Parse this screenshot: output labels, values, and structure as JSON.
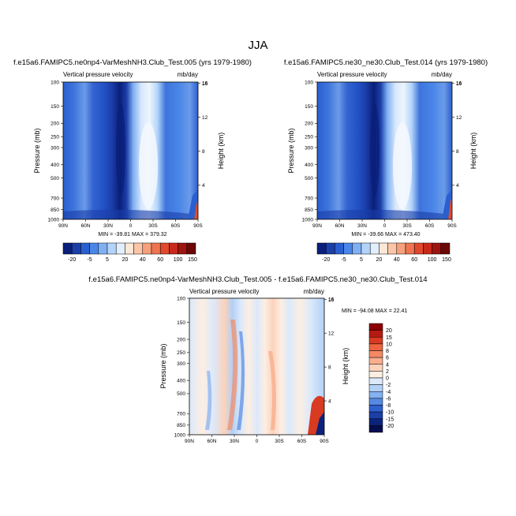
{
  "figure": {
    "title": "JJA"
  },
  "panels": [
    {
      "title": "f.e15a6.FAMIPC5.ne0np4-VarMeshNH3.Club_Test.005 (yrs 1979-1980)",
      "variable_label": "Vertical pressure velocity",
      "units_label": "mb/day",
      "y_label": "Pressure (mb)",
      "y2_label": "Height (km)",
      "stats": "MIN = -39.81  MAX = 379.32"
    },
    {
      "title": "f.e15a6.FAMIPC5.ne30_ne30.Club_Test.014 (yrs 1979-1980)",
      "variable_label": "Vertical pressure velocity",
      "units_label": "mb/day",
      "y_label": "Pressure (mb)",
      "y2_label": "Height (km)",
      "stats": "MIN = -39.66  MAX = 473.40"
    },
    {
      "title": "f.e15a6.FAMIPC5.ne0np4-VarMeshNH3.Club_Test.005 - f.e15a6.FAMIPC5.ne30_ne30.Club_Test.014",
      "variable_label": "Vertical pressure velocity",
      "units_label": "mb/day",
      "y_label": "Pressure (mb)",
      "y2_label": "Height (km)",
      "stats": "MIN = -94.08  MAX =  22.41"
    }
  ],
  "chart_data": [
    {
      "type": "heatmap",
      "title": "f.e15a6.FAMIPC5.ne0np4-VarMeshNH3.Club_Test.005 (yrs 1979-1980)",
      "x_ticks": [
        "90N",
        "60N",
        "30N",
        "0",
        "30S",
        "60S",
        "90S"
      ],
      "y_ticks": [
        "100",
        "150",
        "200",
        "250",
        "300",
        "400",
        "500",
        "700",
        "850",
        "1000"
      ],
      "y_ticks_values": [
        100,
        150,
        200,
        250,
        300,
        400,
        500,
        700,
        850,
        1000
      ],
      "y2_ticks": [
        "16",
        "12",
        "8",
        "4"
      ],
      "y2_ticks_values": [
        16,
        12,
        8,
        4
      ],
      "ylim": [
        1000,
        100
      ],
      "xlim": [
        90,
        -90
      ],
      "colorbar_labels": [
        "-20",
        "-5",
        "5",
        "20",
        "40",
        "60",
        "100",
        "150"
      ],
      "colorbar_colors": [
        "#0a1f7a",
        "#1b3ea8",
        "#2a5fd0",
        "#4a86e8",
        "#7fb0f2",
        "#b3d4fa",
        "#e1eefc",
        "#fde7d7",
        "#fbc6a8",
        "#f6a07c",
        "#ee7550",
        "#e0492d",
        "#c72a1b",
        "#9e1410",
        "#6b0707"
      ],
      "min": -39.81,
      "max": 379.32
    },
    {
      "type": "heatmap",
      "title": "f.e15a6.FAMIPC5.ne30_ne30.Club_Test.014 (yrs 1979-1980)",
      "x_ticks": [
        "90N",
        "60N",
        "30N",
        "0",
        "30S",
        "60S",
        "90S"
      ],
      "y_ticks": [
        "100",
        "150",
        "200",
        "250",
        "300",
        "400",
        "500",
        "700",
        "850",
        "1000"
      ],
      "y_ticks_values": [
        100,
        150,
        200,
        250,
        300,
        400,
        500,
        700,
        850,
        1000
      ],
      "y2_ticks": [
        "16",
        "12",
        "8",
        "4"
      ],
      "y2_ticks_values": [
        16,
        12,
        8,
        4
      ],
      "ylim": [
        1000,
        100
      ],
      "xlim": [
        90,
        -90
      ],
      "colorbar_labels": [
        "-20",
        "-5",
        "5",
        "20",
        "40",
        "60",
        "100",
        "150"
      ],
      "colorbar_colors": [
        "#0a1f7a",
        "#1b3ea8",
        "#2a5fd0",
        "#4a86e8",
        "#7fb0f2",
        "#b3d4fa",
        "#e1eefc",
        "#fde7d7",
        "#fbc6a8",
        "#f6a07c",
        "#ee7550",
        "#e0492d",
        "#c72a1b",
        "#9e1410",
        "#6b0707"
      ],
      "min": -39.66,
      "max": 473.4
    },
    {
      "type": "heatmap",
      "title": "f.e15a6.FAMIPC5.ne0np4-VarMeshNH3.Club_Test.005 - f.e15a6.FAMIPC5.ne30_ne30.Club_Test.014",
      "x_ticks": [
        "90N",
        "60N",
        "30N",
        "0",
        "30S",
        "60S",
        "90S"
      ],
      "y_ticks": [
        "100",
        "150",
        "200",
        "250",
        "300",
        "400",
        "500",
        "700",
        "850",
        "1000"
      ],
      "y_ticks_values": [
        100,
        150,
        200,
        250,
        300,
        400,
        500,
        700,
        850,
        1000
      ],
      "y2_ticks": [
        "16",
        "12",
        "8",
        "4"
      ],
      "y2_ticks_values": [
        16,
        12,
        8,
        4
      ],
      "ylim": [
        1000,
        100
      ],
      "xlim": [
        90,
        -90
      ],
      "colorbar_labels": [
        "20",
        "15",
        "10",
        "8",
        "6",
        "4",
        "2",
        "0",
        "-2",
        "-4",
        "-6",
        "-8",
        "-10",
        "-15",
        "-20"
      ],
      "colorbar_colors": [
        "#8b0000",
        "#b51a10",
        "#d83a22",
        "#ec6440",
        "#f48a63",
        "#f9ae8d",
        "#fcd3bb",
        "#fdeee2",
        "#dbe9fb",
        "#b3d0f6",
        "#84b1ef",
        "#5589e3",
        "#2f60cf",
        "#1b3fa6",
        "#0c237b",
        "#060f4e"
      ],
      "min": -94.08,
      "max": 22.41
    }
  ]
}
